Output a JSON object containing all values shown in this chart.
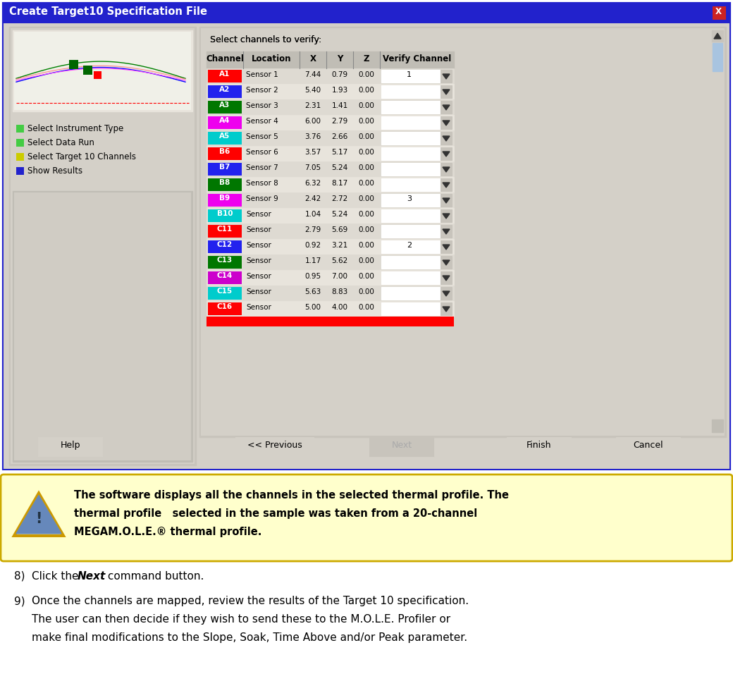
{
  "title_bar": "Create Target10 Specification File",
  "title_bar_color": "#2020cc",
  "title_bar_text_color": "#ffffff",
  "dialog_bg": "#d4d0c8",
  "table_header": [
    "Channel",
    "Location",
    "X",
    "Y",
    "Z",
    "Verify Channel"
  ],
  "rows": [
    {
      "channel": "A1",
      "color": "#ff0000",
      "text_color": "#ffffff",
      "location": "Sensor 1",
      "x": "7.44",
      "y": "0.79",
      "z": "0.00",
      "verify": "1"
    },
    {
      "channel": "A2",
      "color": "#2222ee",
      "text_color": "#ffffff",
      "location": "Sensor 2",
      "x": "5.40",
      "y": "1.93",
      "z": "0.00",
      "verify": ""
    },
    {
      "channel": "A3",
      "color": "#007700",
      "text_color": "#ffffff",
      "location": "Sensor 3",
      "x": "2.31",
      "y": "1.41",
      "z": "0.00",
      "verify": ""
    },
    {
      "channel": "A4",
      "color": "#ee00ee",
      "text_color": "#ffffff",
      "location": "Sensor 4",
      "x": "6.00",
      "y": "2.79",
      "z": "0.00",
      "verify": ""
    },
    {
      "channel": "A5",
      "color": "#00cccc",
      "text_color": "#ffffff",
      "location": "Sensor 5",
      "x": "3.76",
      "y": "2.66",
      "z": "0.00",
      "verify": ""
    },
    {
      "channel": "B6",
      "color": "#ff0000",
      "text_color": "#ffffff",
      "location": "Sensor 6",
      "x": "3.57",
      "y": "5.17",
      "z": "0.00",
      "verify": ""
    },
    {
      "channel": "B7",
      "color": "#2222ee",
      "text_color": "#ffffff",
      "location": "Sensor 7",
      "x": "7.05",
      "y": "5.24",
      "z": "0.00",
      "verify": ""
    },
    {
      "channel": "B8",
      "color": "#007700",
      "text_color": "#ffffff",
      "location": "Sensor 8",
      "x": "6.32",
      "y": "8.17",
      "z": "0.00",
      "verify": ""
    },
    {
      "channel": "B9",
      "color": "#ee00ee",
      "text_color": "#ffffff",
      "location": "Sensor 9",
      "x": "2.42",
      "y": "2.72",
      "z": "0.00",
      "verify": "3"
    },
    {
      "channel": "B10",
      "color": "#00cccc",
      "text_color": "#ffffff",
      "location": "Sensor",
      "x": "1.04",
      "y": "5.24",
      "z": "0.00",
      "verify": ""
    },
    {
      "channel": "C11",
      "color": "#ff0000",
      "text_color": "#ffffff",
      "location": "Sensor",
      "x": "2.79",
      "y": "5.69",
      "z": "0.00",
      "verify": ""
    },
    {
      "channel": "C12",
      "color": "#2222ee",
      "text_color": "#ffffff",
      "location": "Sensor",
      "x": "0.92",
      "y": "3.21",
      "z": "0.00",
      "verify": "2"
    },
    {
      "channel": "C13",
      "color": "#007700",
      "text_color": "#ffffff",
      "location": "Sensor",
      "x": "1.17",
      "y": "5.62",
      "z": "0.00",
      "verify": ""
    },
    {
      "channel": "C14",
      "color": "#cc00cc",
      "text_color": "#ffffff",
      "location": "Sensor",
      "x": "0.95",
      "y": "7.00",
      "z": "0.00",
      "verify": ""
    },
    {
      "channel": "C15",
      "color": "#00cccc",
      "text_color": "#ffffff",
      "location": "Sensor",
      "x": "5.63",
      "y": "8.83",
      "z": "0.00",
      "verify": ""
    },
    {
      "channel": "C16",
      "color": "#ff0000",
      "text_color": "#ffffff",
      "location": "Sensor",
      "x": "5.00",
      "y": "4.00",
      "z": "0.00",
      "verify": ""
    }
  ],
  "left_panel_items": [
    {
      "color": "#44cc44",
      "text": "Select Instrument Type"
    },
    {
      "color": "#44cc44",
      "text": "Select Data Run"
    },
    {
      "color": "#cccc00",
      "text": "Select Target 10 Channels"
    },
    {
      "color": "#2222cc",
      "text": "Show Results"
    }
  ],
  "note_text_lines": [
    "The software displays all the channels in the selected thermal profile. The",
    "thermal profile   selected in the sample was taken from a 20-channel",
    "MEGAM.O.L.E.® thermal profile."
  ],
  "note_bg": "#ffffcc",
  "note_border": "#ccaa00",
  "step8_pre": "Click the ",
  "step8_bold": "Next",
  "step8_post": " command button.",
  "step9_lines": [
    "Once the channels are mapped, review the results of the Target 10 specification.",
    "The user can then decide if they wish to send these to the M.O.L.E. Profiler or",
    "make final modifications to the Slope, Soak, Time Above and/or Peak parameter."
  ]
}
